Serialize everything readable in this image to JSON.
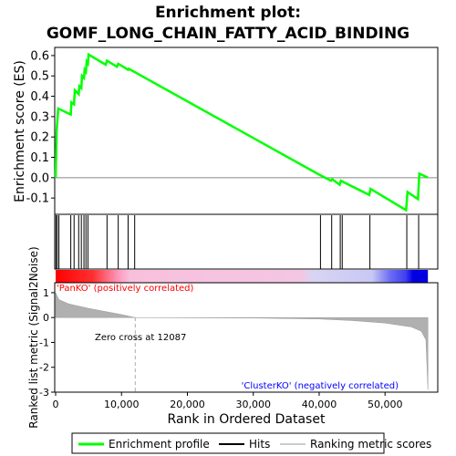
{
  "chart_data": {
    "type": "line",
    "title_line1": "Enrichment plot:",
    "title_line2": "GOMF_LONG_CHAIN_FATTY_ACID_BINDING",
    "es_panel": {
      "ylabel": "Enrichment score (ES)",
      "ylim": [
        -0.18,
        0.64
      ],
      "yticks": [
        -0.1,
        0.0,
        0.1,
        0.2,
        0.3,
        0.4,
        0.5,
        0.6
      ],
      "ytick_labels": [
        "-0.1",
        "0.0",
        "0.1",
        "0.2",
        "0.3",
        "0.4",
        "0.5",
        "0.6"
      ],
      "line_color": "#00ff00",
      "profile": [
        [
          0,
          0.0
        ],
        [
          150,
          0.23
        ],
        [
          400,
          0.34
        ],
        [
          2300,
          0.31
        ],
        [
          2400,
          0.37
        ],
        [
          2800,
          0.36
        ],
        [
          2900,
          0.43
        ],
        [
          3500,
          0.41
        ],
        [
          3600,
          0.45
        ],
        [
          3900,
          0.44
        ],
        [
          4000,
          0.5
        ],
        [
          4300,
          0.49
        ],
        [
          4400,
          0.53
        ],
        [
          4600,
          0.52
        ],
        [
          4700,
          0.57
        ],
        [
          4900,
          0.56
        ],
        [
          5000,
          0.605
        ],
        [
          7600,
          0.555
        ],
        [
          7800,
          0.575
        ],
        [
          9300,
          0.545
        ],
        [
          9500,
          0.56
        ],
        [
          11000,
          0.53
        ],
        [
          11100,
          0.535
        ],
        [
          40000,
          0.015
        ],
        [
          41800,
          -0.015
        ],
        [
          42000,
          -0.008
        ],
        [
          43100,
          -0.035
        ],
        [
          43300,
          -0.015
        ],
        [
          47600,
          -0.085
        ],
        [
          47800,
          -0.055
        ],
        [
          53200,
          -0.16
        ],
        [
          53400,
          -0.07
        ],
        [
          55000,
          -0.105
        ],
        [
          55200,
          0.02
        ],
        [
          56500,
          0.0
        ]
      ]
    },
    "hits": [
      50,
      250,
      500,
      2300,
      2800,
      3500,
      3900,
      4300,
      4600,
      4900,
      7800,
      9500,
      11000,
      12000,
      40200,
      41900,
      43200,
      43500,
      47700,
      53300,
      55100
    ],
    "rank_panel": {
      "ylabel": "Ranked list metric (Signal2Noise)",
      "ylim": [
        -3,
        1.4
      ],
      "yticks": [
        -3,
        -2,
        -1,
        0,
        1
      ],
      "ytick_labels": [
        "-3",
        "-2",
        "-1",
        "0",
        "1"
      ],
      "metric_curve": [
        [
          0,
          1.0
        ],
        [
          500,
          0.72
        ],
        [
          2000,
          0.55
        ],
        [
          5000,
          0.37
        ],
        [
          8000,
          0.22
        ],
        [
          10000,
          0.12
        ],
        [
          12087,
          0.0
        ],
        [
          30000,
          -0.02
        ],
        [
          40000,
          -0.06
        ],
        [
          45000,
          -0.12
        ],
        [
          50000,
          -0.22
        ],
        [
          54000,
          -0.38
        ],
        [
          55500,
          -0.55
        ],
        [
          56200,
          -0.9
        ],
        [
          56500,
          -2.9
        ]
      ],
      "zero_cross_label": "Zero cross at 12087",
      "zero_cross_value": 12087,
      "pos_label": "'PanKO' (positively correlated)",
      "neg_label": "'ClusterKO' (negatively correlated)",
      "pos_color": "#ff0000",
      "neg_color": "#0000ff"
    },
    "xlabel": "Rank in Ordered Dataset",
    "xlim": [
      0,
      58000
    ],
    "xticks": [
      0,
      10000,
      20000,
      30000,
      40000,
      50000
    ],
    "xtick_labels": [
      "0",
      "10,000",
      "20,000",
      "30,000",
      "40,000",
      "50,000"
    ],
    "dataset_size": 56500,
    "legend": [
      {
        "label": "Enrichment profile",
        "color": "#00ff00"
      },
      {
        "label": "Hits",
        "color": "#000000"
      },
      {
        "label": "Ranking metric scores",
        "color": "#cccccc"
      }
    ]
  }
}
